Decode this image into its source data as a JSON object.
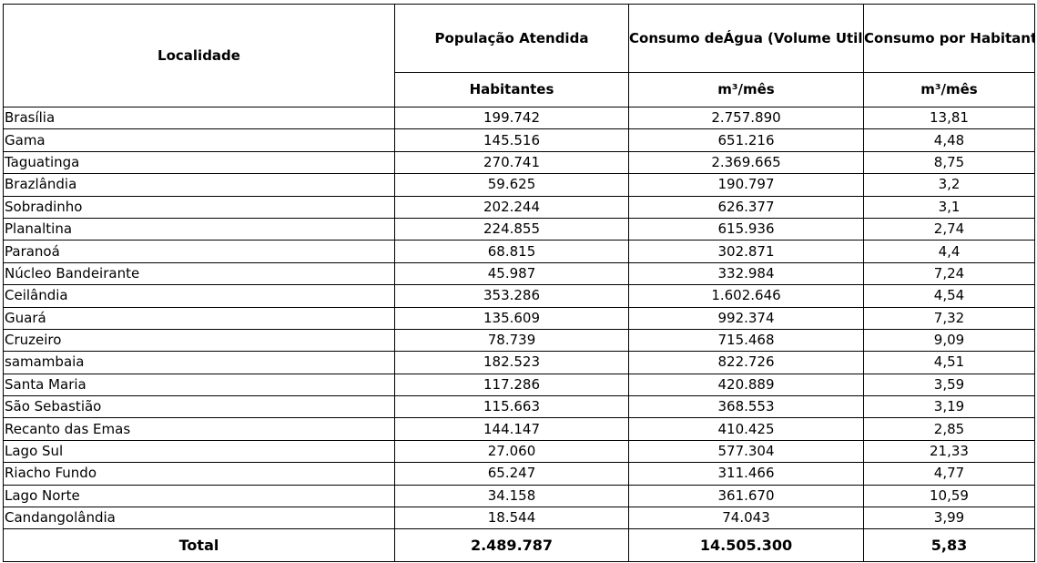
{
  "headers": {
    "localidade": "Localidade",
    "populacao": "População Atendida",
    "consumo_agua": "Consumo deÁgua (Volume Utilizado)",
    "consumo_habitante": "Consumo por Habitante",
    "unit_populacao": "Habitantes",
    "unit_consumo": "m³/mês",
    "unit_habitante": "m³/mês"
  },
  "rows": [
    {
      "localidade": "Brasília",
      "populacao": "199.742",
      "consumo": "2.757.890",
      "por_habitante": "13,81"
    },
    {
      "localidade": "Gama",
      "populacao": "145.516",
      "consumo": "651.216",
      "por_habitante": "4,48"
    },
    {
      "localidade": "Taguatinga",
      "populacao": "270.741",
      "consumo": "2.369.665",
      "por_habitante": "8,75"
    },
    {
      "localidade": "Brazlândia",
      "populacao": "59.625",
      "consumo": "190.797",
      "por_habitante": "3,2"
    },
    {
      "localidade": "Sobradinho",
      "populacao": "202.244",
      "consumo": "626.377",
      "por_habitante": "3,1"
    },
    {
      "localidade": "Planaltina",
      "populacao": "224.855",
      "consumo": "615.936",
      "por_habitante": "2,74"
    },
    {
      "localidade": "Paranoá",
      "populacao": "68.815",
      "consumo": "302.871",
      "por_habitante": "4,4"
    },
    {
      "localidade": "Núcleo Bandeirante",
      "populacao": "45.987",
      "consumo": "332.984",
      "por_habitante": "7,24"
    },
    {
      "localidade": "Ceilândia",
      "populacao": "353.286",
      "consumo": "1.602.646",
      "por_habitante": "4,54"
    },
    {
      "localidade": "Guará",
      "populacao": "135.609",
      "consumo": "992.374",
      "por_habitante": "7,32"
    },
    {
      "localidade": "Cruzeiro",
      "populacao": "78.739",
      "consumo": "715.468",
      "por_habitante": "9,09"
    },
    {
      "localidade": "samambaia",
      "populacao": "182.523",
      "consumo": "822.726",
      "por_habitante": "4,51"
    },
    {
      "localidade": "Santa Maria",
      "populacao": "117.286",
      "consumo": "420.889",
      "por_habitante": "3,59"
    },
    {
      "localidade": "São Sebastião",
      "populacao": "115.663",
      "consumo": "368.553",
      "por_habitante": "3,19"
    },
    {
      "localidade": "Recanto das Emas",
      "populacao": "144.147",
      "consumo": "410.425",
      "por_habitante": "2,85"
    },
    {
      "localidade": "Lago Sul",
      "populacao": "27.060",
      "consumo": "577.304",
      "por_habitante": "21,33"
    },
    {
      "localidade": "Riacho Fundo",
      "populacao": "65.247",
      "consumo": "311.466",
      "por_habitante": "4,77"
    },
    {
      "localidade": "Lago Norte",
      "populacao": "34.158",
      "consumo": "361.670",
      "por_habitante": "10,59"
    },
    {
      "localidade": "Candangolândia",
      "populacao": "18.544",
      "consumo": "74.043",
      "por_habitante": "3,99"
    }
  ],
  "total": {
    "label": "Total",
    "populacao": "2.489.787",
    "consumo": "14.505.300",
    "por_habitante": "5,83"
  }
}
